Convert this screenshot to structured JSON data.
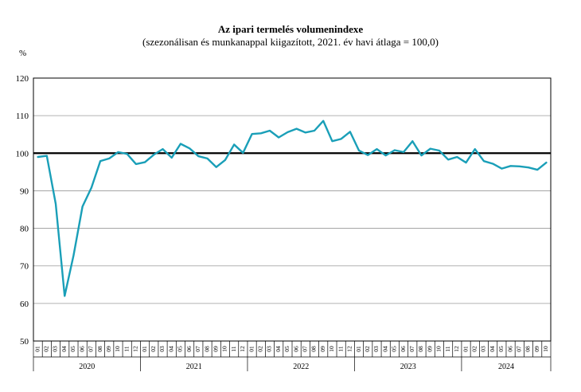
{
  "chart_data": {
    "type": "line",
    "title": "Az ipari termelés volumenindexe",
    "subtitle": "(szezonálisan és munkanappal kiigazított, 2021. év havi átlaga = 100,0)",
    "ylabel": "%",
    "ylim": [
      50,
      120
    ],
    "yticks": [
      50,
      60,
      70,
      80,
      90,
      100,
      110,
      120
    ],
    "grid": true,
    "reference_line": 100,
    "month_labels": [
      "01",
      "02",
      "03",
      "04",
      "05",
      "06",
      "07",
      "08",
      "09",
      "10",
      "11",
      "12"
    ],
    "year_labels": [
      "2020",
      "2021",
      "2022",
      "2023",
      "2024"
    ],
    "last_month_label": "10",
    "series": [
      {
        "color": "#1a9fb8",
        "values": [
          99.0,
          99.3,
          86.5,
          62.0,
          72.8,
          85.8,
          90.8,
          97.9,
          98.6,
          100.3,
          99.8,
          97.1,
          97.6,
          99.6,
          101.1,
          98.8,
          102.5,
          101.3,
          99.2,
          98.6,
          96.3,
          98.2,
          102.3,
          100.1,
          105.1,
          105.3,
          106.0,
          104.2,
          105.6,
          106.5,
          105.5,
          106.0,
          108.6,
          103.2,
          103.8,
          105.7,
          100.7,
          99.5,
          101.1,
          99.4,
          100.8,
          100.3,
          103.2,
          99.4,
          101.2,
          100.7,
          98.3,
          99.0,
          97.5,
          101.1,
          97.9,
          97.2,
          95.9,
          96.6,
          96.5,
          96.2,
          95.6,
          97.5
        ]
      }
    ]
  }
}
